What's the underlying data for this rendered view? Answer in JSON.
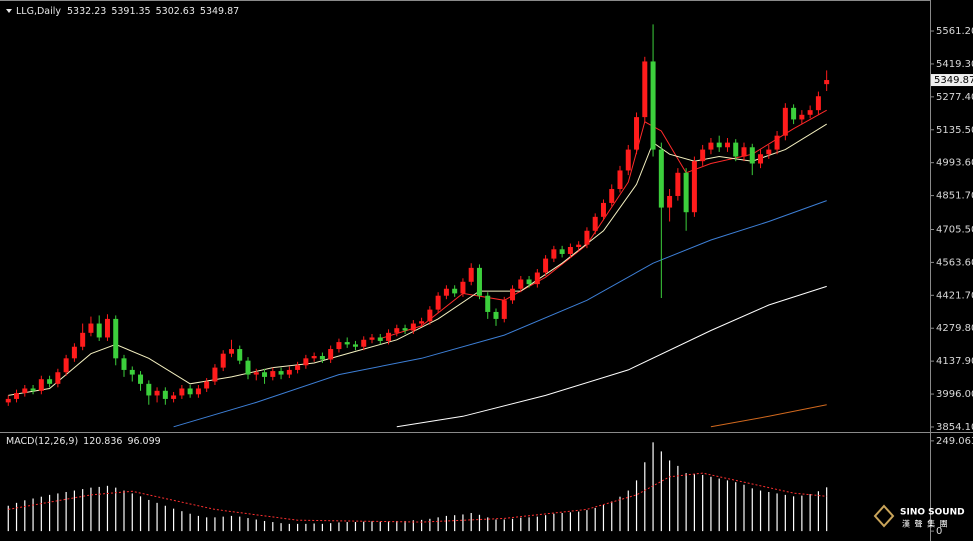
{
  "chart_data": [
    {
      "type": "candlestick",
      "title": "LLG,Daily",
      "xlim": [
        -1,
        111.5
      ],
      "ylim": [
        3841,
        5682
      ],
      "yticks": [
        {
          "value": 5561.2,
          "label": "5561.20"
        },
        {
          "value": 5419.3,
          "label": "5419.30"
        },
        {
          "value": 5277.4,
          "label": "5277.40"
        },
        {
          "value": 5135.5,
          "label": "5135.50"
        },
        {
          "value": 4993.6,
          "label": "4993.60"
        },
        {
          "value": 4851.7,
          "label": "4851.70"
        },
        {
          "value": 4705.5,
          "label": "4705.50"
        },
        {
          "value": 4563.6,
          "label": "4563.60"
        },
        {
          "value": 4421.7,
          "label": "4421.70"
        },
        {
          "value": 4279.8,
          "label": "4279.80"
        },
        {
          "value": 4137.9,
          "label": "4137.90"
        },
        {
          "value": 3996,
          "label": "3996.00"
        },
        {
          "value": 3854.1,
          "label": "3854.10"
        }
      ],
      "up_color": "#ff1c1c",
      "down_color": "#3ccf3c",
      "open": [
        3960,
        3975,
        4000,
        4020,
        4010,
        4060,
        4040,
        4090,
        4150,
        4200,
        4260,
        4300,
        4240,
        4320,
        4150,
        4100,
        4080,
        4040,
        3990,
        4010,
        3975,
        3990,
        4020,
        3995,
        4020,
        4050,
        4110,
        4170,
        4190,
        4140,
        4080,
        4090,
        4070,
        4095,
        4080,
        4100,
        4120,
        4150,
        4160,
        4145,
        4190,
        4220,
        4210,
        4200,
        4230,
        4240,
        4225,
        4260,
        4280,
        4270,
        4300,
        4310,
        4360,
        4420,
        4450,
        4430,
        4480,
        4540,
        4420,
        4350,
        4320,
        4400,
        4450,
        4490,
        4470,
        4520,
        4580,
        4620,
        4600,
        4630,
        4640,
        4700,
        4760,
        4820,
        4880,
        4960,
        5050,
        5190,
        5430,
        5050,
        4800,
        4850,
        4950,
        4780,
        5000,
        5050,
        5080,
        5060,
        5080,
        5020,
        5060,
        4990,
        5030,
        5050,
        5110,
        5230,
        5180,
        5200,
        5220,
        5332.23
      ],
      "high": [
        3990,
        4015,
        4035,
        4035,
        4075,
        4075,
        4105,
        4165,
        4215,
        4300,
        4330,
        4335,
        4340,
        4335,
        4165,
        4115,
        4095,
        4055,
        4025,
        4025,
        4005,
        4035,
        4035,
        4035,
        4065,
        4125,
        4185,
        4230,
        4205,
        4155,
        4105,
        4105,
        4110,
        4110,
        4115,
        4135,
        4165,
        4175,
        4175,
        4205,
        4235,
        4240,
        4225,
        4245,
        4255,
        4255,
        4275,
        4295,
        4295,
        4315,
        4325,
        4375,
        4435,
        4465,
        4465,
        4495,
        4560,
        4555,
        4435,
        4365,
        4415,
        4465,
        4505,
        4505,
        4535,
        4595,
        4635,
        4635,
        4645,
        4655,
        4715,
        4775,
        4835,
        4900,
        4980,
        5070,
        5210,
        5450,
        5590,
        5080,
        4880,
        4970,
        4970,
        5020,
        5070,
        5100,
        5110,
        5100,
        5095,
        5080,
        5075,
        5050,
        5070,
        5130,
        5250,
        5245,
        5220,
        5240,
        5300,
        5391.35
      ],
      "low": [
        3945,
        3960,
        3985,
        3995,
        3995,
        4025,
        4025,
        4075,
        4135,
        4185,
        4245,
        4225,
        4225,
        4120,
        4070,
        4050,
        4010,
        3950,
        3960,
        3950,
        3960,
        3975,
        3980,
        3980,
        4005,
        4035,
        4095,
        4155,
        4125,
        4060,
        4055,
        4040,
        4055,
        4060,
        4065,
        4085,
        4105,
        4135,
        4130,
        4130,
        4175,
        4195,
        4185,
        4185,
        4215,
        4210,
        4210,
        4245,
        4255,
        4255,
        4285,
        4295,
        4345,
        4405,
        4415,
        4415,
        4465,
        4405,
        4320,
        4290,
        4305,
        4385,
        4435,
        4455,
        4455,
        4505,
        4565,
        4585,
        4585,
        4615,
        4625,
        4685,
        4745,
        4805,
        4865,
        4940,
        5030,
        5170,
        5020,
        4410,
        4740,
        4830,
        4700,
        4760,
        4980,
        5030,
        5040,
        5040,
        5000,
        5000,
        4940,
        4970,
        5010,
        5030,
        5090,
        5160,
        5160,
        5185,
        5200,
        5302.63
      ],
      "close": [
        3975,
        4000,
        4020,
        4010,
        4060,
        4040,
        4090,
        4150,
        4200,
        4260,
        4300,
        4240,
        4320,
        4150,
        4100,
        4080,
        4040,
        3990,
        4010,
        3975,
        3990,
        4020,
        3995,
        4020,
        4050,
        4110,
        4170,
        4190,
        4140,
        4080,
        4090,
        4070,
        4095,
        4080,
        4100,
        4120,
        4150,
        4160,
        4145,
        4190,
        4220,
        4210,
        4200,
        4230,
        4240,
        4225,
        4260,
        4280,
        4270,
        4300,
        4310,
        4360,
        4420,
        4450,
        4430,
        4480,
        4540,
        4420,
        4350,
        4320,
        4400,
        4450,
        4490,
        4470,
        4520,
        4580,
        4620,
        4600,
        4630,
        4640,
        4700,
        4760,
        4820,
        4880,
        4960,
        5050,
        5190,
        5430,
        5050,
        4800,
        4850,
        4950,
        4780,
        5000,
        5050,
        5080,
        5060,
        5080,
        5020,
        5060,
        4990,
        5030,
        5050,
        5110,
        5230,
        5180,
        5200,
        5220,
        5280,
        5349.87
      ],
      "lines": [
        {
          "color": "#ff2a2a",
          "x": [
            45,
            50,
            55,
            60,
            65,
            70,
            75,
            77,
            79,
            82,
            85,
            90,
            95,
            99
          ],
          "values": [
            4235,
            4290,
            4430,
            4400,
            4500,
            4640,
            4910,
            5170,
            5130,
            4950,
            4990,
            5030,
            5140,
            5220
          ]
        },
        {
          "color": "#f4f0c0",
          "x": [
            0,
            5,
            10,
            13,
            17,
            22,
            27,
            32,
            37,
            42,
            47,
            52,
            57,
            62,
            67,
            72,
            76,
            78,
            80,
            83,
            86,
            90,
            94,
            99
          ],
          "values": [
            3990,
            4020,
            4170,
            4210,
            4150,
            4040,
            4070,
            4110,
            4130,
            4180,
            4230,
            4320,
            4440,
            4440,
            4560,
            4700,
            4900,
            5080,
            5030,
            5000,
            5020,
            5000,
            5050,
            5160
          ]
        },
        {
          "color": "#3d7fd6",
          "x": [
            20,
            30,
            40,
            50,
            60,
            70,
            78,
            85,
            92,
            99
          ],
          "values": [
            3855,
            3960,
            4080,
            4150,
            4250,
            4400,
            4560,
            4660,
            4740,
            4830
          ]
        },
        {
          "color": "#ffffff",
          "x": [
            47,
            55,
            65,
            75,
            85,
            92,
            99
          ],
          "values": [
            3855,
            3900,
            3990,
            4100,
            4270,
            4380,
            4460
          ]
        },
        {
          "color": "#d2691e",
          "x": [
            85,
            92,
            99
          ],
          "values": [
            3855,
            3900,
            3950
          ]
        }
      ]
    },
    {
      "type": "macd",
      "title": "MACD(12,26,9)",
      "xlim": [
        -1,
        111.5
      ],
      "ylim": [
        -19,
        268
      ],
      "yticks": [
        249.063,
        0
      ],
      "histogram": {
        "color": "#ffffff",
        "values": [
          70,
          78,
          85,
          90,
          95,
          100,
          104,
          108,
          112,
          116,
          120,
          122,
          125,
          120,
          112,
          104,
          96,
          86,
          78,
          70,
          62,
          55,
          48,
          42,
          38,
          38,
          40,
          42,
          40,
          36,
          32,
          28,
          25,
          22,
          20,
          20,
          20,
          21,
          20,
          22,
          24,
          25,
          25,
          26,
          27,
          26,
          27,
          28,
          28,
          30,
          31,
          34,
          38,
          42,
          44,
          46,
          50,
          45,
          38,
          32,
          32,
          34,
          37,
          38,
          40,
          44,
          48,
          50,
          52,
          54,
          58,
          64,
          72,
          82,
          95,
          112,
          140,
          190,
          245,
          220,
          195,
          180,
          160,
          158,
          155,
          150,
          145,
          140,
          135,
          128,
          118,
          112,
          108,
          104,
          100,
          96,
          98,
          102,
          110,
          120.836
        ]
      },
      "signal": {
        "color": "#ff3030",
        "x": [
          0,
          10,
          15,
          25,
          35,
          50,
          60,
          70,
          76,
          80,
          84,
          90,
          95,
          99
        ],
        "values": [
          60,
          100,
          110,
          60,
          30,
          25,
          35,
          60,
          100,
          150,
          160,
          130,
          105,
          96.099
        ]
      }
    }
  ],
  "watermark": {
    "brand": "SINO SOUND",
    "brand_cn": "漢 聲 集 團"
  }
}
